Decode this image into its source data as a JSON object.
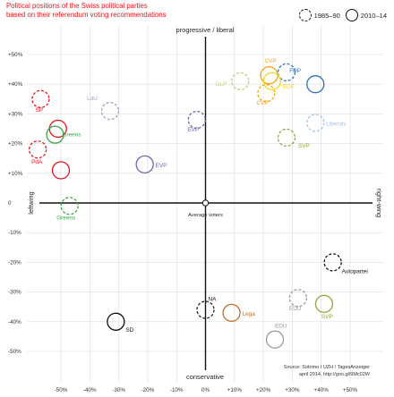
{
  "title_lines": [
    "Political positions of the Swiss political parties",
    "based on their referendum voting recommendations"
  ],
  "legend": [
    {
      "label": "1985–90",
      "style": "dashed"
    },
    {
      "label": "2010–14",
      "style": "solid"
    }
  ],
  "source_lines": [
    "Source: Sotomo / UZH / TagesAnzeiger",
    "april 2014. http://goo.gl/9Mc02W"
  ],
  "colors": {
    "SP": "#e8141c",
    "Greens": "#3aa64a",
    "PdA": "#e8141c",
    "LdU": "#a79bc8",
    "EVP": "#6e6ba8",
    "GLP": "#b9d36e",
    "CVP": "#f5a10e",
    "BDP": "#f7d51e",
    "FDP": "#2f73bd",
    "Liberals": "#9ec4e8",
    "SVP": "#8ea53c",
    "NA": "#222222",
    "SD": "#111111",
    "Lega": "#c0702b",
    "EDU": "#9a9a9a",
    "Autopartei": "#111111",
    "axis": "#111111",
    "grid": "#dddddd",
    "text": "#333333"
  },
  "chart_data": {
    "type": "scatter",
    "xlim": [
      -58,
      60
    ],
    "ylim": [
      -58,
      60
    ],
    "x_ticks": [
      -50,
      -40,
      -30,
      -20,
      -10,
      0,
      10,
      20,
      30,
      40,
      50
    ],
    "x_tick_labels": [
      "-50%",
      "-40%",
      "-30%",
      "-20%",
      "-10%",
      "0%",
      "+10%",
      "+20%",
      "+30%",
      "+40%",
      "+50%"
    ],
    "y_ticks": [
      50,
      40,
      30,
      20,
      10,
      0,
      -10,
      -20,
      -30,
      -40,
      -50
    ],
    "y_tick_labels": [
      "+50%",
      "+40%",
      "+30%",
      "+20%",
      "+10%",
      "0",
      "-10%",
      "-20%",
      "-30%",
      "-40%",
      "-50%"
    ],
    "axis_labels": {
      "top": "progressive / liberal",
      "bottom": "conservative",
      "left": "leftwing",
      "right": "right-wing",
      "origin": "Average voters"
    },
    "grid": true,
    "series": [
      {
        "name": "1985–90",
        "style": "dashed",
        "points": [
          {
            "party": "SP",
            "label": "SP",
            "x": -57,
            "y": 35
          },
          {
            "party": "PdA",
            "label": "PdA",
            "x": -58,
            "y": 18
          },
          {
            "party": "Greens",
            "label": "Greens",
            "x": -47,
            "y": -1
          },
          {
            "party": "LdU",
            "label": "LdU",
            "x": -33,
            "y": 31
          },
          {
            "party": "EVP",
            "label": "EVP",
            "x": -3,
            "y": 28
          },
          {
            "party": "GLP",
            "label": "GLP",
            "x": 12,
            "y": 41
          },
          {
            "party": "CVP",
            "label": "CVP",
            "x": 21,
            "y": 37
          },
          {
            "party": "FDP",
            "label": "",
            "x": 28,
            "y": 44
          },
          {
            "party": "Liberals",
            "label": "Liberals",
            "x": 38,
            "y": 27
          },
          {
            "party": "SVP",
            "label": "SVP",
            "x": 28,
            "y": 22
          },
          {
            "party": "NA",
            "label": "NA",
            "x": 0,
            "y": -36
          },
          {
            "party": "EDU",
            "label": "EDU",
            "x": 32,
            "y": -32
          },
          {
            "party": "Autopartei",
            "label": "Autopartei",
            "x": 44,
            "y": -20
          }
        ]
      },
      {
        "name": "2010–14",
        "style": "solid",
        "points": [
          {
            "party": "SP",
            "label": "",
            "x": -51,
            "y": 25
          },
          {
            "party": "Greens",
            "label": "Greens",
            "x": -52,
            "y": 23
          },
          {
            "party": "PdA",
            "label": "",
            "x": -50,
            "y": 11
          },
          {
            "party": "EVP",
            "label": "EVP",
            "x": -21,
            "y": 13
          },
          {
            "party": "CVP",
            "label": "CVP",
            "x": 22,
            "y": 43
          },
          {
            "party": "BDP",
            "label": "BDP",
            "x": 23,
            "y": 41
          },
          {
            "party": "FDP",
            "label": "FDP",
            "x": 38,
            "y": 40
          },
          {
            "party": "SVP",
            "label": "SVP",
            "x": 41,
            "y": -34
          },
          {
            "party": "Lega",
            "label": "Lega",
            "x": 9,
            "y": -37
          },
          {
            "party": "EDU",
            "label": "EDU",
            "x": 24,
            "y": -46
          },
          {
            "party": "SD",
            "label": "SD",
            "x": -31,
            "y": -40
          }
        ]
      }
    ]
  }
}
